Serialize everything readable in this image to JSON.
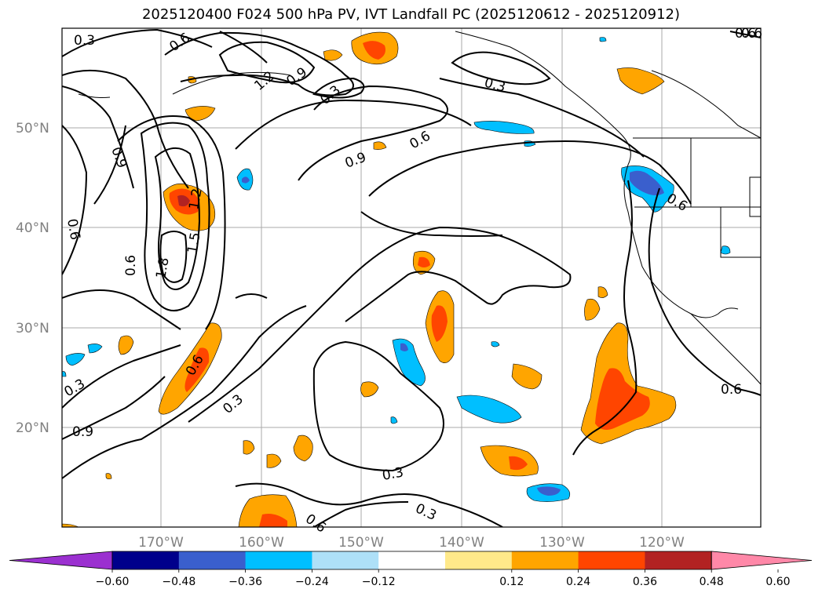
{
  "title": "2025120400 F024 500 hPa PV, IVT Landfall PC (2025120612 - 2025120912)",
  "lat_ticks": [
    "50°N",
    "40°N",
    "30°N",
    "20°N"
  ],
  "lon_ticks": [
    "170°W",
    "160°W",
    "150°W",
    "140°W",
    "130°W",
    "120°W"
  ],
  "colorbar": {
    "ticks": [
      "−0.60",
      "−0.48",
      "−0.36",
      "−0.24",
      "−0.12",
      "0.12",
      "0.24",
      "0.36",
      "0.48",
      "0.60"
    ],
    "colors": [
      "#9b30d0",
      "#00008b",
      "#3a5fcd",
      "#00bfff",
      "#aee0f8",
      "#ffffff",
      "#ffe98a",
      "#ffa500",
      "#ff4500",
      "#b22222",
      "#ff88a8"
    ]
  },
  "contour_labels": [
    "0.3",
    "0.6",
    "1.2",
    "0.9",
    "0.3",
    "0.3",
    "0.6",
    "0.6",
    "0.9",
    "0.9",
    "0.6",
    "0.6",
    "0.6",
    "1.8",
    "1.5",
    "1.2",
    "0.6",
    "0.3",
    "0.3",
    "0.9",
    "0.3",
    "0.3",
    "0.6",
    "0.6",
    "0.6"
  ],
  "icons": {
    "colorbar_min_extend": "triangle-left",
    "colorbar_max_extend": "triangle-right"
  }
}
